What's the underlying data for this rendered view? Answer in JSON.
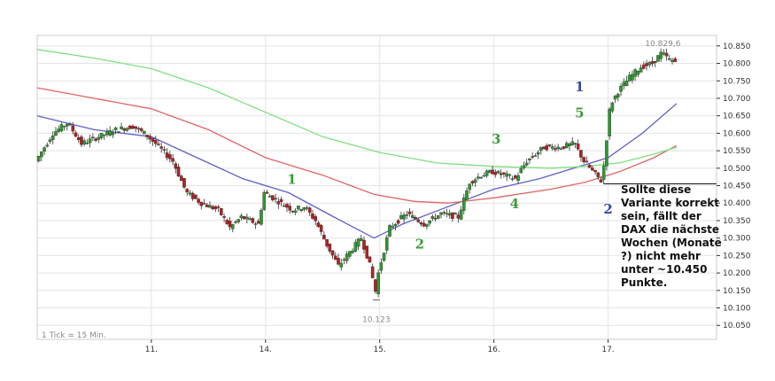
{
  "chart_data": {
    "type": "candlestick",
    "title": "",
    "xlabel": "",
    "ylabel": "",
    "footer_text": "1 Tick = 15 Min.",
    "x_ticks": [
      {
        "label": "11.",
        "t": 1.0
      },
      {
        "label": "14.",
        "t": 2.0
      },
      {
        "label": "15.",
        "t": 3.0
      },
      {
        "label": "16.",
        "t": 4.0
      },
      {
        "label": "17.",
        "t": 5.0
      }
    ],
    "x_range": [
      0.0,
      5.95
    ],
    "y_ticks": [
      10050,
      10100,
      10150,
      10200,
      10250,
      10300,
      10350,
      10400,
      10450,
      10500,
      10550,
      10600,
      10650,
      10700,
      10750,
      10800,
      10850
    ],
    "y_tick_labels": [
      "10.050",
      "10.100",
      "10.150",
      "10.200",
      "10.250",
      "10.300",
      "10.350",
      "10.400",
      "10.450",
      "10.500",
      "10.550",
      "10.600",
      "10.650",
      "10.700",
      "10.750",
      "10.800",
      "10.850"
    ],
    "ylim": [
      10010,
      10880
    ],
    "grid": true,
    "price_path": [
      [
        0.0,
        10520
      ],
      [
        0.15,
        10600
      ],
      [
        0.28,
        10630
      ],
      [
        0.4,
        10570
      ],
      [
        0.55,
        10590
      ],
      [
        0.7,
        10610
      ],
      [
        0.85,
        10620
      ],
      [
        0.95,
        10600
      ],
      [
        1.05,
        10570
      ],
      [
        1.2,
        10520
      ],
      [
        1.32,
        10430
      ],
      [
        1.45,
        10400
      ],
      [
        1.6,
        10380
      ],
      [
        1.7,
        10330
      ],
      [
        1.8,
        10360
      ],
      [
        1.95,
        10340
      ],
      [
        2.0,
        10430
      ],
      [
        2.1,
        10410
      ],
      [
        2.25,
        10380
      ],
      [
        2.35,
        10390
      ],
      [
        2.45,
        10350
      ],
      [
        2.55,
        10280
      ],
      [
        2.65,
        10220
      ],
      [
        2.75,
        10260
      ],
      [
        2.85,
        10300
      ],
      [
        2.92,
        10230
      ],
      [
        2.98,
        10140
      ],
      [
        3.0,
        10200
      ],
      [
        3.1,
        10330
      ],
      [
        3.25,
        10370
      ],
      [
        3.4,
        10340
      ],
      [
        3.55,
        10370
      ],
      [
        3.7,
        10360
      ],
      [
        3.8,
        10460
      ],
      [
        3.9,
        10480
      ],
      [
        4.0,
        10490
      ],
      [
        4.1,
        10480
      ],
      [
        4.2,
        10470
      ],
      [
        4.3,
        10520
      ],
      [
        4.45,
        10560
      ],
      [
        4.6,
        10560
      ],
      [
        4.72,
        10570
      ],
      [
        4.8,
        10520
      ],
      [
        4.88,
        10490
      ],
      [
        4.96,
        10460
      ],
      [
        5.03,
        10680
      ],
      [
        5.1,
        10720
      ],
      [
        5.2,
        10760
      ],
      [
        5.3,
        10790
      ],
      [
        5.4,
        10800
      ],
      [
        5.48,
        10830
      ],
      [
        5.55,
        10810
      ],
      [
        5.6,
        10805
      ]
    ],
    "series": [
      {
        "name": "",
        "color": "#5f5fc8",
        "points": [
          [
            0.0,
            10650
          ],
          [
            0.5,
            10610
          ],
          [
            1.0,
            10590
          ],
          [
            1.4,
            10530
          ],
          [
            1.8,
            10470
          ],
          [
            2.2,
            10430
          ],
          [
            2.6,
            10360
          ],
          [
            2.95,
            10300
          ],
          [
            3.2,
            10340
          ],
          [
            3.6,
            10390
          ],
          [
            4.0,
            10440
          ],
          [
            4.4,
            10470
          ],
          [
            4.7,
            10500
          ],
          [
            5.0,
            10530
          ],
          [
            5.3,
            10600
          ],
          [
            5.6,
            10685
          ]
        ]
      },
      {
        "name": "",
        "color": "#e06464",
        "points": [
          [
            0.0,
            10730
          ],
          [
            0.5,
            10700
          ],
          [
            1.0,
            10670
          ],
          [
            1.5,
            10610
          ],
          [
            2.0,
            10530
          ],
          [
            2.5,
            10480
          ],
          [
            2.95,
            10425
          ],
          [
            3.3,
            10405
          ],
          [
            3.6,
            10400
          ],
          [
            4.0,
            10415
          ],
          [
            4.5,
            10440
          ],
          [
            4.8,
            10460
          ],
          [
            5.1,
            10490
          ],
          [
            5.4,
            10530
          ],
          [
            5.6,
            10565
          ]
        ]
      },
      {
        "name": "",
        "color": "#7ee07e",
        "points": [
          [
            0.0,
            10840
          ],
          [
            0.5,
            10815
          ],
          [
            1.0,
            10785
          ],
          [
            1.5,
            10730
          ],
          [
            2.0,
            10660
          ],
          [
            2.5,
            10590
          ],
          [
            3.0,
            10545
          ],
          [
            3.5,
            10515
          ],
          [
            4.0,
            10505
          ],
          [
            4.5,
            10500
          ],
          [
            4.8,
            10505
          ],
          [
            5.1,
            10515
          ],
          [
            5.4,
            10540
          ],
          [
            5.6,
            10560
          ]
        ]
      }
    ],
    "annotations": {
      "high_label": "10.829,6",
      "high_point": [
        5.48,
        10829.6
      ],
      "low_label": "10.123",
      "low_point": [
        2.97,
        10123
      ],
      "support_level": 10455,
      "support_from_t": 4.96,
      "waves": [
        {
          "label": "1",
          "t": 2.23,
          "v": 10455,
          "color": "#3a9a3a"
        },
        {
          "label": "2",
          "t": 3.35,
          "v": 10270,
          "color": "#3a9a3a"
        },
        {
          "label": "3",
          "t": 4.02,
          "v": 10570,
          "color": "#3a9a3a"
        },
        {
          "label": "4",
          "t": 4.18,
          "v": 10385,
          "color": "#3a9a3a"
        },
        {
          "label": "5",
          "t": 4.75,
          "v": 10645,
          "color": "#3a9a3a"
        },
        {
          "label": "1",
          "t": 4.75,
          "v": 10720,
          "color": "#3a4aa0"
        },
        {
          "label": "2",
          "t": 5.0,
          "v": 10370,
          "color": "#3a4aa0"
        }
      ],
      "note_lines": [
        "Sollte diese",
        "Variante korrekt",
        "sein, fällt der",
        "DAX die nächste",
        "Wochen (Monate",
        "?) nicht mehr",
        "unter ~10.450",
        "Punkte."
      ]
    },
    "colors": {
      "up_candle": "#2f9a2f",
      "down_candle": "#b02222",
      "grid": "#e4e4e4",
      "axis": "#333333"
    }
  }
}
